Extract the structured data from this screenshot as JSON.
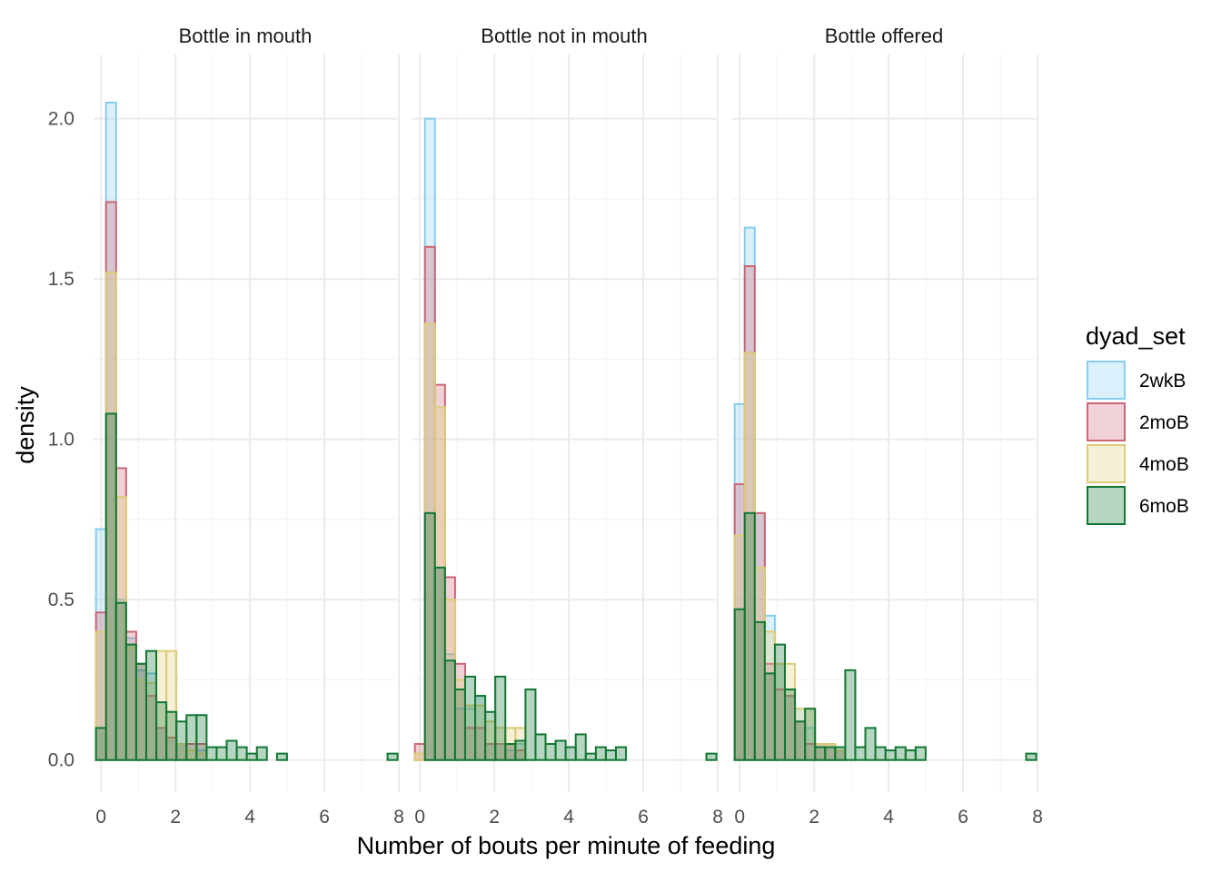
{
  "chart_data": {
    "type": "histogram",
    "xlabel": "Number of bouts per minute of feeding",
    "ylabel": "density",
    "xlim": [
      -0.2,
      7.95
    ],
    "ylim": [
      -0.1,
      2.2
    ],
    "x_ticks": [
      0,
      2,
      4,
      6,
      8
    ],
    "x_tick_labels": [
      "0",
      "2",
      "4",
      "6",
      "8"
    ],
    "y_ticks": [
      0,
      0.5,
      1,
      1.5,
      2
    ],
    "y_tick_labels": [
      "0.0",
      "0.5",
      "1.0",
      "1.5",
      "2.0"
    ],
    "grid": true,
    "legend": {
      "title": "dyad_set",
      "position": "right",
      "entries": [
        "2wkB",
        "2moB",
        "4moB",
        "6moB"
      ]
    },
    "colors": {
      "2wkB": "#88CCEE",
      "2moB": "#CC6677",
      "4moB": "#DDCC77",
      "6moB": "#117733"
    },
    "bin_width": 0.27,
    "bin_start": -0.135,
    "panels": [
      {
        "title": "Bottle in mouth",
        "series": [
          {
            "name": "2wkB",
            "values": [
              0.72,
              2.05,
              0.5,
              0.38,
              0.28,
              0.27,
              0.1,
              0.07,
              0.05,
              0.0,
              0.03
            ]
          },
          {
            "name": "2moB",
            "values": [
              0.46,
              1.74,
              0.91,
              0.4,
              0.3,
              0.2,
              0.1,
              0.07,
              0.05,
              0.05,
              0.05
            ]
          },
          {
            "name": "4moB",
            "values": [
              0.4,
              1.52,
              0.82,
              0.35,
              0.25,
              0.24,
              0.34,
              0.34,
              0.05,
              0.03,
              0.02
            ]
          },
          {
            "name": "6moB",
            "values": [
              0.1,
              1.08,
              0.49,
              0.36,
              0.3,
              0.34,
              0.18,
              0.15,
              0.12,
              0.14,
              0.14,
              0.04,
              0.04,
              0.06,
              0.04,
              0.02,
              0.04,
              0.0,
              0.02,
              0.0,
              0.0,
              0.0,
              0.0,
              0.0,
              0.0,
              0.0,
              0.0,
              0.0,
              0.0,
              0.02
            ]
          }
        ]
      },
      {
        "title": "Bottle not in mouth",
        "series": [
          {
            "name": "2wkB",
            "values": [
              0.0,
              2.0,
              0.6,
              0.33,
              0.16,
              0.16,
              0.2,
              0.05,
              0.05,
              0.03,
              0.05
            ]
          },
          {
            "name": "2moB",
            "values": [
              0.05,
              1.6,
              1.17,
              0.57,
              0.3,
              0.1,
              0.1,
              0.05,
              0.05,
              0.05,
              0.03
            ]
          },
          {
            "name": "4moB",
            "values": [
              0.02,
              1.36,
              1.1,
              0.5,
              0.25,
              0.17,
              0.17,
              0.12,
              0.1,
              0.1,
              0.1
            ]
          },
          {
            "name": "6moB",
            "values": [
              0.0,
              0.77,
              0.6,
              0.31,
              0.22,
              0.26,
              0.2,
              0.15,
              0.26,
              0.05,
              0.06,
              0.22,
              0.08,
              0.05,
              0.06,
              0.04,
              0.08,
              0.02,
              0.04,
              0.03,
              0.04,
              0.0,
              0.0,
              0.0,
              0.0,
              0.0,
              0.0,
              0.0,
              0.0,
              0.02
            ]
          }
        ]
      },
      {
        "title": "Bottle offered",
        "series": [
          {
            "name": "2wkB",
            "values": [
              1.11,
              1.66,
              0.77,
              0.45,
              0.3,
              0.2,
              0.16,
              0.1,
              0.05,
              0.04,
              0.03
            ]
          },
          {
            "name": "2moB",
            "values": [
              0.86,
              1.54,
              0.77,
              0.3,
              0.22,
              0.2,
              0.12,
              0.05,
              0.05,
              0.05,
              0.03
            ]
          },
          {
            "name": "4moB",
            "values": [
              0.7,
              1.27,
              0.6,
              0.4,
              0.3,
              0.3,
              0.16,
              0.16,
              0.05,
              0.05,
              0.03
            ]
          },
          {
            "name": "6moB",
            "values": [
              0.47,
              0.77,
              0.43,
              0.27,
              0.36,
              0.22,
              0.12,
              0.16,
              0.04,
              0.04,
              0.04,
              0.28,
              0.04,
              0.1,
              0.04,
              0.03,
              0.04,
              0.03,
              0.04,
              0.0,
              0.0,
              0.0,
              0.0,
              0.0,
              0.0,
              0.0,
              0.0,
              0.0,
              0.0,
              0.02
            ]
          }
        ]
      }
    ]
  }
}
